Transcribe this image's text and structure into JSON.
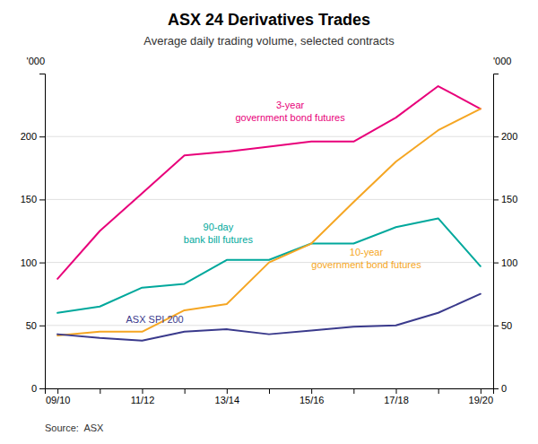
{
  "chart_data": {
    "type": "line",
    "title": "ASX 24 Derivatives Trades",
    "subtitle": "Average daily trading volume, selected contracts",
    "ylabel": "'000",
    "y2label": "'000",
    "source": "Source:  ASX",
    "categories": [
      "09/10",
      null,
      "11/12",
      null,
      "13/14",
      null,
      "15/16",
      null,
      "17/18",
      null,
      "19/20"
    ],
    "series": [
      {
        "color": "#e8007a",
        "values": [
          87,
          125,
          155,
          185,
          188,
          192,
          196,
          196,
          215,
          240,
          222
        ]
      },
      {
        "color": "#00a89c",
        "values": [
          60,
          65,
          80,
          83,
          102,
          102,
          115,
          115,
          128,
          135,
          97
        ]
      },
      {
        "color": "#f5a623",
        "values": [
          42,
          45,
          45,
          62,
          67,
          100,
          115,
          148,
          180,
          205,
          222
        ]
      },
      {
        "color": "#3a3a8c",
        "values": [
          43,
          40,
          38,
          45,
          47,
          43,
          46,
          49,
          50,
          60,
          75
        ]
      }
    ],
    "annotations": [
      {
        "text": "3-year\ngovernment bond futures",
        "x": 5.5,
        "y": 220,
        "color": "#e8007a"
      },
      {
        "text": "90-day\nbank bill futures",
        "x": 3.8,
        "y": 123,
        "color": "#00a89c"
      },
      {
        "text": "10-year\ngovernment bond futures",
        "x": 7.3,
        "y": 103,
        "color": "#f5a623"
      },
      {
        "text": "ASX SPI 200",
        "x": 2.3,
        "y": 55,
        "color": "#3a3a8c"
      }
    ],
    "ylim": [
      0,
      250
    ],
    "yticks": [
      0,
      50,
      100,
      150,
      200
    ],
    "y2lim": [
      0,
      250
    ],
    "y2ticks": [
      0,
      50,
      100,
      150,
      200
    ],
    "grid": true
  }
}
